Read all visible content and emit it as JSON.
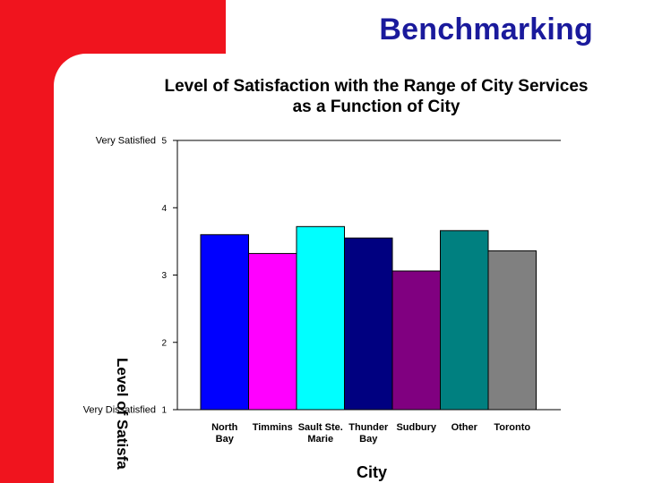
{
  "slide": {
    "title": "Benchmarking"
  },
  "colors": {
    "band": "#f0141e",
    "title": "#1a1a9c",
    "bars": [
      "#0000ff",
      "#ff00ff",
      "#00ffff",
      "#000080",
      "#800080",
      "#008080",
      "#808080"
    ]
  },
  "chart_data": {
    "type": "bar",
    "title_lines": [
      "Level of Satisfaction with the Range of City Services",
      "as a Function of City"
    ],
    "categories": [
      [
        "North",
        "Bay"
      ],
      [
        "Timmins"
      ],
      [
        "Sault Ste.",
        "Marie"
      ],
      [
        "Thunder",
        "Bay"
      ],
      [
        "Sudbury"
      ],
      [
        "Other"
      ],
      [
        "Toronto"
      ]
    ],
    "values": [
      3.6,
      3.32,
      3.72,
      3.55,
      3.06,
      3.66,
      3.36
    ],
    "xlabel": "City",
    "ylabel": "Level of Satisfa",
    "ylim": [
      1,
      5
    ],
    "yticks": [
      1,
      2,
      3,
      4,
      5
    ],
    "ytick_labels": [
      "1",
      "2",
      "3",
      "4",
      "5"
    ],
    "scale_labels": {
      "top": "Very Satisfied",
      "bottom": "Very Dissatisfied"
    },
    "grid": false
  }
}
